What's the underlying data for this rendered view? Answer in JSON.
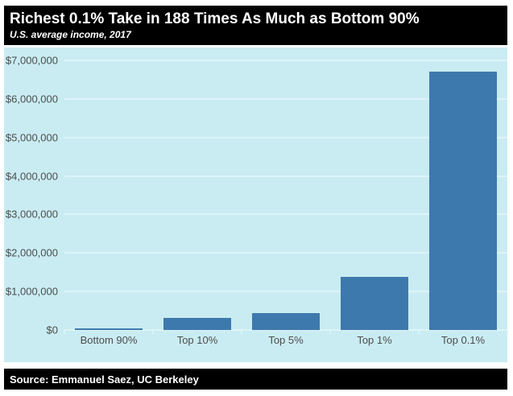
{
  "header": {
    "title": "Richest 0.1% Take in 188 Times As Much as Bottom 90%",
    "subtitle": "U.S. average income, 2017"
  },
  "source": {
    "text": "Source: Emmanuel Saez, UC Berkeley"
  },
  "colors": {
    "page_bg": "#ffffff",
    "header_bg": "#000000",
    "header_text": "#ffffff",
    "plot_bg": "#c9ecf2",
    "gridline": "#ddf4f7",
    "bar": "#3e79ad",
    "axis_text": "#4d4d4d",
    "source_bg": "#000000",
    "source_text": "#ffffff"
  },
  "chart_data": {
    "type": "bar",
    "title": "Richest 0.1% Take in 188 Times As Much as Bottom 90%",
    "subtitle": "U.S. average income, 2017",
    "categories": [
      "Bottom 90%",
      "Top 10%",
      "Top 5%",
      "Top 1%",
      "Top 0.1%"
    ],
    "values": [
      35600,
      313000,
      440000,
      1380000,
      6700000
    ],
    "xlabel": "",
    "ylabel": "",
    "ylim": [
      0,
      7000000
    ],
    "ytick_interval": 1000000,
    "ytick_labels": [
      "$0",
      "$1,000,000",
      "$2,000,000",
      "$3,000,000",
      "$4,000,000",
      "$5,000,000",
      "$6,000,000",
      "$7,000,000"
    ],
    "grid": true,
    "legend": false
  }
}
